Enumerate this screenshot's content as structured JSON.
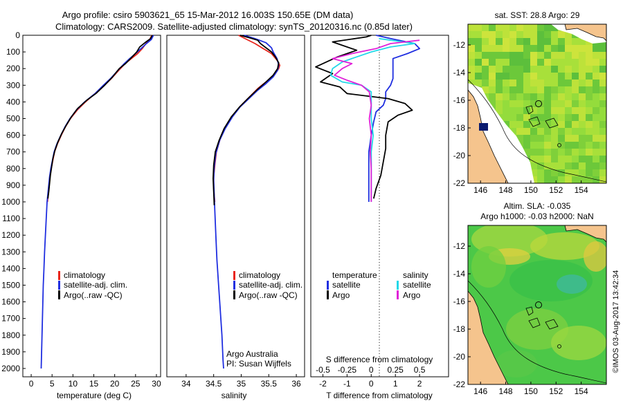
{
  "header": {
    "line1": "Argo profile: csiro 5903621_65 15-Mar-2012 16.003S 150.65E (DM data)",
    "line2": "Climatology: CARS2009. Satellite-adjusted climatology: synTS_20120316.nc (0.85d later)"
  },
  "footer": {
    "credit1": "Argo Australia",
    "credit2": "PI: Susan Wijffels",
    "imos": "©IMOS 03-Aug-2017 13:42:34"
  },
  "colors": {
    "climatology": "#e8241b",
    "satellite": "#1f2ee0",
    "argo": "#000000",
    "sat_salinity": "#22d8e8",
    "argo_salinity": "#e020d8",
    "land": "#f5c48d"
  },
  "chart_data": [
    {
      "type": "line",
      "id": "temperature",
      "xlabel": "temperature (deg C)",
      "ylabel": "",
      "xlim": [
        -2,
        31
      ],
      "ylim": [
        0,
        2050
      ],
      "xticks": [
        0,
        5,
        10,
        15,
        20,
        25,
        30
      ],
      "yticks": [
        0,
        100,
        200,
        300,
        400,
        500,
        600,
        700,
        800,
        900,
        1000,
        1100,
        1200,
        1300,
        1400,
        1500,
        1600,
        1700,
        1800,
        1900,
        2000
      ],
      "legend": [
        "climatology",
        "satellite-adj. clim.",
        "Argo(..raw -QC)"
      ],
      "series": [
        {
          "name": "climatology",
          "color": "#e8241b",
          "points": [
            [
              28.9,
              0
            ],
            [
              28.4,
              25
            ],
            [
              27.5,
              50
            ],
            [
              26.6,
              80
            ],
            [
              25.5,
              110
            ],
            [
              24.0,
              140
            ],
            [
              22.5,
              170
            ],
            [
              21.0,
              210
            ],
            [
              19.2,
              260
            ],
            [
              17.5,
              300
            ],
            [
              15.3,
              350
            ],
            [
              13.0,
              400
            ],
            [
              11.0,
              450
            ],
            [
              9.4,
              500
            ],
            [
              8.2,
              550
            ],
            [
              7.2,
              600
            ],
            [
              6.3,
              650
            ],
            [
              5.6,
              700
            ],
            [
              5.2,
              750
            ],
            [
              4.8,
              800
            ],
            [
              4.5,
              850
            ],
            [
              4.3,
              900
            ],
            [
              4.1,
              950
            ],
            [
              3.9,
              1000
            ]
          ]
        },
        {
          "name": "satellite-adj. clim.",
          "color": "#1f2ee0",
          "points": [
            [
              29.3,
              0
            ],
            [
              28.8,
              25
            ],
            [
              27.6,
              50
            ],
            [
              26.3,
              80
            ],
            [
              25.0,
              110
            ],
            [
              23.6,
              140
            ],
            [
              22.3,
              170
            ],
            [
              20.8,
              210
            ],
            [
              19.0,
              260
            ],
            [
              17.3,
              300
            ],
            [
              15.3,
              350
            ],
            [
              12.8,
              400
            ],
            [
              10.8,
              450
            ],
            [
              9.3,
              500
            ],
            [
              8.1,
              550
            ],
            [
              7.1,
              600
            ],
            [
              6.2,
              650
            ],
            [
              5.5,
              700
            ],
            [
              5.1,
              750
            ],
            [
              4.7,
              800
            ],
            [
              4.4,
              850
            ],
            [
              4.2,
              900
            ],
            [
              4.0,
              950
            ],
            [
              3.8,
              1000
            ],
            [
              3.6,
              1100
            ],
            [
              3.4,
              1200
            ],
            [
              3.2,
              1300
            ],
            [
              3.05,
              1400
            ],
            [
              2.9,
              1500
            ],
            [
              2.8,
              1600
            ],
            [
              2.7,
              1700
            ],
            [
              2.6,
              1800
            ],
            [
              2.5,
              1900
            ],
            [
              2.4,
              2000
            ]
          ]
        },
        {
          "name": "Argo(..raw -QC)",
          "color": "#000000",
          "points": [
            [
              29.0,
              0
            ],
            [
              28.6,
              20
            ],
            [
              27.5,
              40
            ],
            [
              26.0,
              70
            ],
            [
              25.3,
              100
            ],
            [
              23.8,
              140
            ],
            [
              22.6,
              170
            ],
            [
              21.1,
              200
            ],
            [
              19.5,
              250
            ],
            [
              17.6,
              300
            ],
            [
              15.5,
              350
            ],
            [
              13.3,
              390
            ],
            [
              11.1,
              440
            ],
            [
              9.6,
              490
            ],
            [
              8.4,
              540
            ],
            [
              7.3,
              590
            ],
            [
              6.4,
              640
            ],
            [
              5.7,
              690
            ],
            [
              5.2,
              740
            ],
            [
              4.9,
              790
            ],
            [
              4.6,
              840
            ],
            [
              4.4,
              890
            ],
            [
              4.2,
              940
            ],
            [
              4.0,
              980
            ]
          ]
        }
      ]
    },
    {
      "type": "line",
      "id": "salinity",
      "xlabel": "salinity",
      "xlim": [
        33.65,
        36.15
      ],
      "ylim": [
        0,
        2050
      ],
      "xticks": [
        34,
        34.5,
        35,
        35.5,
        36
      ],
      "legend": [
        "climatology",
        "satellite-adj. clim.",
        "Argo(..raw -QC)"
      ],
      "series": [
        {
          "name": "climatology",
          "color": "#e8241b",
          "points": [
            [
              34.95,
              0
            ],
            [
              35.1,
              25
            ],
            [
              35.25,
              50
            ],
            [
              35.4,
              80
            ],
            [
              35.55,
              110
            ],
            [
              35.65,
              150
            ],
            [
              35.7,
              180
            ],
            [
              35.68,
              200
            ],
            [
              35.6,
              240
            ],
            [
              35.45,
              280
            ],
            [
              35.3,
              320
            ],
            [
              35.15,
              370
            ],
            [
              35.0,
              420
            ],
            [
              34.85,
              480
            ],
            [
              34.72,
              550
            ],
            [
              34.62,
              620
            ],
            [
              34.55,
              700
            ],
            [
              34.52,
              780
            ],
            [
              34.5,
              850
            ],
            [
              34.5,
              920
            ],
            [
              34.52,
              1000
            ]
          ]
        },
        {
          "name": "satellite-adj. clim.",
          "color": "#1f2ee0",
          "points": [
            [
              35.05,
              0
            ],
            [
              35.25,
              20
            ],
            [
              35.45,
              45
            ],
            [
              35.55,
              75
            ],
            [
              35.58,
              100
            ],
            [
              35.65,
              140
            ],
            [
              35.68,
              180
            ],
            [
              35.66,
              210
            ],
            [
              35.58,
              250
            ],
            [
              35.45,
              290
            ],
            [
              35.3,
              330
            ],
            [
              35.14,
              380
            ],
            [
              34.98,
              430
            ],
            [
              34.84,
              490
            ],
            [
              34.71,
              560
            ],
            [
              34.61,
              630
            ],
            [
              34.54,
              710
            ],
            [
              34.51,
              790
            ],
            [
              34.5,
              870
            ],
            [
              34.51,
              960
            ],
            [
              34.52,
              1050
            ],
            [
              34.54,
              1200
            ],
            [
              34.56,
              1350
            ],
            [
              34.59,
              1500
            ],
            [
              34.62,
              1650
            ],
            [
              34.65,
              1800
            ],
            [
              34.67,
              1950
            ],
            [
              34.68,
              2000
            ]
          ]
        },
        {
          "name": "Argo(..raw -QC)",
          "color": "#000000",
          "points": [
            [
              34.98,
              0
            ],
            [
              35.15,
              15
            ],
            [
              35.3,
              30
            ],
            [
              35.35,
              50
            ],
            [
              35.45,
              75
            ],
            [
              35.55,
              100
            ],
            [
              35.62,
              130
            ],
            [
              35.68,
              165
            ],
            [
              35.66,
              200
            ],
            [
              35.58,
              240
            ],
            [
              35.45,
              280
            ],
            [
              35.28,
              330
            ],
            [
              35.12,
              380
            ],
            [
              34.97,
              430
            ],
            [
              34.82,
              490
            ],
            [
              34.69,
              560
            ],
            [
              34.6,
              630
            ],
            [
              34.53,
              700
            ],
            [
              34.5,
              780
            ],
            [
              34.49,
              860
            ],
            [
              34.5,
              940
            ],
            [
              34.51,
              1020
            ]
          ]
        }
      ]
    },
    {
      "type": "line",
      "id": "difference",
      "xlabel": "T difference from climatology",
      "xlabel_top": "S difference from climatology",
      "xlim": [
        -2.5,
        3.2
      ],
      "xticks": [
        -2,
        -1,
        0,
        1,
        2
      ],
      "xticks_top": [
        -0.5,
        -0.25,
        0,
        0.25,
        0.5
      ],
      "legend_left_title": "temperature",
      "legend_right_title": "salinity",
      "legend_left": [
        "satellite",
        "Argo"
      ],
      "legend_right": [
        "satellite",
        "Argo"
      ],
      "series": [
        {
          "name": "T satellite",
          "color": "#1f2ee0",
          "points": [
            [
              0.2,
              0
            ],
            [
              0.8,
              20
            ],
            [
              1.8,
              50
            ],
            [
              2.0,
              80
            ],
            [
              1.5,
              110
            ],
            [
              0.9,
              140
            ],
            [
              0.9,
              180
            ],
            [
              0.9,
              220
            ],
            [
              0.9,
              260
            ],
            [
              0.8,
              300
            ],
            [
              0.6,
              340
            ],
            [
              0.6,
              380
            ],
            [
              0.5,
              420
            ],
            [
              0.2,
              460
            ],
            [
              0.1,
              520
            ],
            [
              0.0,
              600
            ],
            [
              -0.1,
              700
            ],
            [
              -0.1,
              800
            ],
            [
              -0.1,
              900
            ],
            [
              -0.1,
              1000
            ]
          ]
        },
        {
          "name": "T Argo",
          "color": "#000000",
          "points": [
            [
              0.0,
              0
            ],
            [
              -0.2,
              10
            ],
            [
              -1.6,
              40
            ],
            [
              -1.2,
              60
            ],
            [
              -0.6,
              90
            ],
            [
              -1.4,
              130
            ],
            [
              -2.3,
              190
            ],
            [
              -1.6,
              230
            ],
            [
              -2.1,
              280
            ],
            [
              -1.3,
              310
            ],
            [
              -1.0,
              350
            ],
            [
              0.7,
              380
            ],
            [
              1.4,
              410
            ],
            [
              1.7,
              450
            ],
            [
              1.1,
              480
            ],
            [
              0.7,
              520
            ],
            [
              0.6,
              600
            ],
            [
              0.6,
              680
            ],
            [
              0.5,
              760
            ],
            [
              0.4,
              840
            ],
            [
              0.2,
              920
            ],
            [
              0.1,
              980
            ]
          ]
        },
        {
          "name": "S satellite",
          "color": "#22d8e8",
          "points": [
            [
              0.08,
              20
            ],
            [
              0.45,
              50
            ],
            [
              0.2,
              70
            ],
            [
              0.0,
              100
            ],
            [
              -0.15,
              130
            ],
            [
              -0.3,
              160
            ],
            [
              -0.4,
              200
            ],
            [
              -0.42,
              240
            ],
            [
              -0.3,
              280
            ],
            [
              -0.1,
              300
            ],
            [
              0.0,
              340
            ],
            [
              0.0,
              420
            ],
            [
              0.0,
              500
            ],
            [
              0.02,
              600
            ],
            [
              0.0,
              700
            ],
            [
              0.0,
              800
            ],
            [
              0.0,
              900
            ],
            [
              0.0,
              1000
            ]
          ]
        },
        {
          "name": "S Argo",
          "color": "#e020d8",
          "points": [
            [
              0.5,
              30
            ],
            [
              0.2,
              50
            ],
            [
              0.05,
              80
            ],
            [
              -0.2,
              110
            ],
            [
              -0.4,
              140
            ],
            [
              -0.2,
              170
            ],
            [
              -0.3,
              200
            ],
            [
              -0.38,
              240
            ],
            [
              -0.25,
              270
            ],
            [
              -0.1,
              300
            ],
            [
              -0.02,
              340
            ],
            [
              0.0,
              420
            ],
            [
              -0.02,
              500
            ],
            [
              0.0,
              600
            ],
            [
              -0.01,
              700
            ],
            [
              0.0,
              800
            ],
            [
              0.0,
              900
            ],
            [
              0.0,
              1000
            ]
          ]
        }
      ]
    },
    {
      "type": "heatmap",
      "id": "sst-map",
      "title": "sat. SST: 28.8 Argo: 29",
      "xlim": [
        145,
        156
      ],
      "ylim": [
        -22,
        -10.5
      ],
      "xticks": [
        146,
        148,
        150,
        152,
        154
      ],
      "yticks": [
        -12,
        -14,
        -16,
        -18,
        -20,
        -22
      ],
      "profile_location": [
        150.65,
        -16.0
      ]
    },
    {
      "type": "heatmap",
      "id": "sla-map",
      "title": "Altim. SLA: -0.035",
      "subtitle": "Argo h1000: -0.03 h2000: NaN",
      "xlim": [
        145,
        156
      ],
      "ylim": [
        -22,
        -10.5
      ],
      "xticks": [
        146,
        148,
        150,
        152,
        154
      ],
      "yticks": [
        -12,
        -14,
        -16,
        -18,
        -20,
        -22
      ],
      "profile_location": [
        150.65,
        -16.0
      ]
    }
  ]
}
